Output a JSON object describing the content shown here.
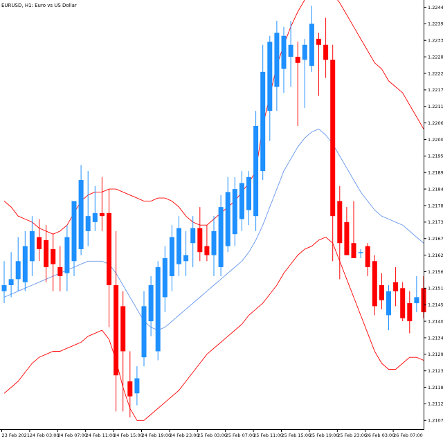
{
  "chart_data": {
    "type": "candlestick",
    "title": "EURUSD, H1:  Euro vs US Dollar",
    "colors": {
      "bull": "#1e90ff",
      "bear": "#ff0000",
      "band": "#ff0000",
      "middle": "#6495ed",
      "axis": "#000000",
      "background": "#ffffff"
    },
    "ylim": [
      1.2105,
      1.2246
    ],
    "y_ticks": [
      "1.22445",
      "1.22390",
      "1.22335",
      "1.22280",
      "1.22225",
      "1.22170",
      "1.22115",
      "1.22060",
      "1.22005",
      "1.21950",
      "1.21895",
      "1.21840",
      "1.21785",
      "1.21730",
      "1.21675",
      "1.21620",
      "1.21565",
      "1.21510",
      "1.21455",
      "1.21400",
      "1.21345",
      "1.21290",
      "1.21235",
      "1.21180",
      "1.21125",
      "1.21070"
    ],
    "x_ticks": [
      {
        "label": "23 Feb 2021",
        "index": 0
      },
      {
        "label": "24 Feb 03:00",
        "index": 4
      },
      {
        "label": "24 Feb 07:00",
        "index": 8
      },
      {
        "label": "24 Feb 11:00",
        "index": 12
      },
      {
        "label": "24 Feb 15:00",
        "index": 16
      },
      {
        "label": "24 Feb 19:00",
        "index": 20
      },
      {
        "label": "24 Feb 23:00",
        "index": 24
      },
      {
        "label": "25 Feb 03:00",
        "index": 28
      },
      {
        "label": "25 Feb 07:00",
        "index": 32
      },
      {
        "label": "25 Feb 11:00",
        "index": 36
      },
      {
        "label": "25 Feb 15:00",
        "index": 40
      },
      {
        "label": "25 Feb 19:00",
        "index": 44
      },
      {
        "label": "25 Feb 23:00",
        "index": 48
      },
      {
        "label": "26 Feb 03:00",
        "index": 52
      },
      {
        "label": "26 Feb 07:00",
        "index": 56
      }
    ],
    "candles": [
      {
        "o": 1.215,
        "h": 1.216,
        "l": 1.2146,
        "c": 1.2152
      },
      {
        "o": 1.2152,
        "h": 1.2163,
        "l": 1.2148,
        "c": 1.2154
      },
      {
        "o": 1.2154,
        "h": 1.2168,
        "l": 1.215,
        "c": 1.216
      },
      {
        "o": 1.2153,
        "h": 1.217,
        "l": 1.215,
        "c": 1.2165
      },
      {
        "o": 1.216,
        "h": 1.2175,
        "l": 1.2155,
        "c": 1.217
      },
      {
        "o": 1.2168,
        "h": 1.2174,
        "l": 1.216,
        "c": 1.2164
      },
      {
        "o": 1.2167,
        "h": 1.2172,
        "l": 1.2153,
        "c": 1.2158
      },
      {
        "o": 1.2164,
        "h": 1.2169,
        "l": 1.215,
        "c": 1.2159
      },
      {
        "o": 1.2158,
        "h": 1.2165,
        "l": 1.215,
        "c": 1.2155
      },
      {
        "o": 1.2156,
        "h": 1.2172,
        "l": 1.215,
        "c": 1.2168
      },
      {
        "o": 1.216,
        "h": 1.218,
        "l": 1.2155,
        "c": 1.218
      },
      {
        "o": 1.2164,
        "h": 1.2192,
        "l": 1.2162,
        "c": 1.2187
      },
      {
        "o": 1.217,
        "h": 1.219,
        "l": 1.2165,
        "c": 1.2175
      },
      {
        "o": 1.2173,
        "h": 1.2185,
        "l": 1.217,
        "c": 1.2176
      },
      {
        "o": 1.2176,
        "h": 1.2188,
        "l": 1.217,
        "c": 1.2175
      },
      {
        "o": 1.2176,
        "h": 1.2184,
        "l": 1.2138,
        "c": 1.2152
      },
      {
        "o": 1.2152,
        "h": 1.217,
        "l": 1.211,
        "c": 1.2122
      },
      {
        "o": 1.2145,
        "h": 1.215,
        "l": 1.211,
        "c": 1.213
      },
      {
        "o": 1.212,
        "h": 1.213,
        "l": 1.2108,
        "c": 1.2115
      },
      {
        "o": 1.2116,
        "h": 1.2125,
        "l": 1.2112,
        "c": 1.2121
      },
      {
        "o": 1.2128,
        "h": 1.215,
        "l": 1.2125,
        "c": 1.2145
      },
      {
        "o": 1.214,
        "h": 1.2155,
        "l": 1.2135,
        "c": 1.2152
      },
      {
        "o": 1.213,
        "h": 1.216,
        "l": 1.2127,
        "c": 1.2158
      },
      {
        "o": 1.2148,
        "h": 1.2165,
        "l": 1.2143,
        "c": 1.2161
      },
      {
        "o": 1.2155,
        "h": 1.2172,
        "l": 1.215,
        "c": 1.2168
      },
      {
        "o": 1.2159,
        "h": 1.2175,
        "l": 1.2155,
        "c": 1.2171
      },
      {
        "o": 1.216,
        "h": 1.217,
        "l": 1.2155,
        "c": 1.2162
      },
      {
        "o": 1.2166,
        "h": 1.2175,
        "l": 1.2158,
        "c": 1.2171
      },
      {
        "o": 1.2171,
        "h": 1.2178,
        "l": 1.216,
        "c": 1.2163
      },
      {
        "o": 1.2165,
        "h": 1.2172,
        "l": 1.216,
        "c": 1.2162
      },
      {
        "o": 1.2162,
        "h": 1.2175,
        "l": 1.2155,
        "c": 1.217
      },
      {
        "o": 1.2158,
        "h": 1.2182,
        "l": 1.2155,
        "c": 1.2178
      },
      {
        "o": 1.2165,
        "h": 1.2188,
        "l": 1.2163,
        "c": 1.2183
      },
      {
        "o": 1.2169,
        "h": 1.2188,
        "l": 1.2165,
        "c": 1.2184
      },
      {
        "o": 1.2174,
        "h": 1.219,
        "l": 1.217,
        "c": 1.2186
      },
      {
        "o": 1.2177,
        "h": 1.219,
        "l": 1.2172,
        "c": 1.2188
      },
      {
        "o": 1.2175,
        "h": 1.221,
        "l": 1.217,
        "c": 1.2205
      },
      {
        "o": 1.219,
        "h": 1.2232,
        "l": 1.2187,
        "c": 1.2223
      },
      {
        "o": 1.221,
        "h": 1.2235,
        "l": 1.22,
        "c": 1.2233
      },
      {
        "o": 1.2218,
        "h": 1.224,
        "l": 1.221,
        "c": 1.2236
      },
      {
        "o": 1.2224,
        "h": 1.2238,
        "l": 1.2216,
        "c": 1.2235
      },
      {
        "o": 1.2228,
        "h": 1.224,
        "l": 1.2218,
        "c": 1.2232
      },
      {
        "o": 1.2228,
        "h": 1.2233,
        "l": 1.2205,
        "c": 1.2226
      },
      {
        "o": 1.2227,
        "h": 1.2234,
        "l": 1.2211,
        "c": 1.2232
      },
      {
        "o": 1.2225,
        "h": 1.2245,
        "l": 1.2223,
        "c": 1.2239
      },
      {
        "o": 1.2234,
        "h": 1.2236,
        "l": 1.2215,
        "c": 1.2232
      },
      {
        "o": 1.2232,
        "h": 1.2241,
        "l": 1.2221,
        "c": 1.2227
      },
      {
        "o": 1.2227,
        "h": 1.2232,
        "l": 1.216,
        "c": 1.2175
      },
      {
        "o": 1.218,
        "h": 1.2185,
        "l": 1.2154,
        "c": 1.2166
      },
      {
        "o": 1.2173,
        "h": 1.2178,
        "l": 1.2162,
        "c": 1.2162
      },
      {
        "o": 1.2166,
        "h": 1.218,
        "l": 1.2161,
        "c": 1.2161
      },
      {
        "o": 1.2163,
        "h": 1.2164,
        "l": 1.2161,
        "c": 1.2163
      },
      {
        "o": 1.2165,
        "h": 1.2166,
        "l": 1.2155,
        "c": 1.2158
      },
      {
        "o": 1.216,
        "h": 1.2162,
        "l": 1.2142,
        "c": 1.2145
      },
      {
        "o": 1.2152,
        "h": 1.2156,
        "l": 1.2144,
        "c": 1.2147
      },
      {
        "o": 1.2142,
        "h": 1.2152,
        "l": 1.2137,
        "c": 1.215
      },
      {
        "o": 1.2153,
        "h": 1.2158,
        "l": 1.2145,
        "c": 1.215
      },
      {
        "o": 1.2151,
        "h": 1.2153,
        "l": 1.214,
        "c": 1.2141
      },
      {
        "o": 1.2146,
        "h": 1.215,
        "l": 1.2136,
        "c": 1.214
      },
      {
        "o": 1.2146,
        "h": 1.2155,
        "l": 1.2143,
        "c": 1.2148
      },
      {
        "o": 1.2151,
        "h": 1.2155,
        "l": 1.2141,
        "c": 1.2143
      }
    ],
    "upper_band": [
      1.218,
      1.2178,
      1.2175,
      1.2174,
      1.2173,
      1.2171,
      1.217,
      1.2169,
      1.217,
      1.2172,
      1.2176,
      1.218,
      1.2182,
      1.2183,
      1.2183,
      1.2184,
      1.2184,
      1.2183,
      1.2182,
      1.2181,
      1.218,
      1.218,
      1.2181,
      1.2181,
      1.218,
      1.2178,
      1.2175,
      1.2173,
      1.2172,
      1.2172,
      1.2174,
      1.2176,
      1.2178,
      1.218,
      1.2183,
      1.2186,
      1.219,
      1.2205,
      1.2215,
      1.2225,
      1.2232,
      1.2238,
      1.2243,
      1.2247,
      1.225,
      1.2251,
      1.225,
      1.2249,
      1.2246,
      1.2242,
      1.2238,
      1.2234,
      1.223,
      1.2226,
      1.2224,
      1.222,
      1.2218,
      1.2216,
      1.2212,
      1.2208,
      1.2204
    ],
    "middle_band": [
      1.2148,
      1.2149,
      1.215,
      1.2151,
      1.2152,
      1.2153,
      1.2154,
      1.2155,
      1.2156,
      1.2157,
      1.2158,
      1.2159,
      1.216,
      1.216,
      1.216,
      1.2159,
      1.2156,
      1.2152,
      1.2148,
      1.2144,
      1.214,
      1.2138,
      1.2137,
      1.2138,
      1.214,
      1.2142,
      1.2144,
      1.2146,
      1.2148,
      1.215,
      1.2152,
      1.2154,
      1.2156,
      1.2158,
      1.216,
      1.2163,
      1.2167,
      1.2172,
      1.2178,
      1.2184,
      1.219,
      1.2194,
      1.2198,
      1.2201,
      1.2203,
      1.2204,
      1.2202,
      1.2199,
      1.2195,
      1.2191,
      1.2187,
      1.2183,
      1.218,
      1.2177,
      1.2175,
      1.2174,
      1.2173,
      1.2172,
      1.217,
      1.2168,
      1.2166
    ],
    "lower_band": [
      1.2116,
      1.2118,
      1.212,
      1.2123,
      1.2126,
      1.2128,
      1.2129,
      1.213,
      1.213,
      1.2131,
      1.2132,
      1.2133,
      1.2135,
      1.2136,
      1.2137,
      1.2134,
      1.2127,
      1.2118,
      1.2111,
      1.2107,
      1.2107,
      1.2109,
      1.2111,
      1.2113,
      1.2115,
      1.2117,
      1.212,
      1.2123,
      1.2126,
      1.2129,
      1.2131,
      1.2133,
      1.2135,
      1.2137,
      1.2139,
      1.2142,
      1.2144,
      1.2146,
      1.2149,
      1.2152,
      1.2156,
      1.2159,
      1.2162,
      1.2164,
      1.2165,
      1.2167,
      1.2168,
      1.2166,
      1.216,
      1.2154,
      1.2148,
      1.2142,
      1.2136,
      1.213,
      1.2126,
      1.2124,
      1.2124,
      1.2126,
      1.2128,
      1.2128,
      1.2127
    ]
  }
}
